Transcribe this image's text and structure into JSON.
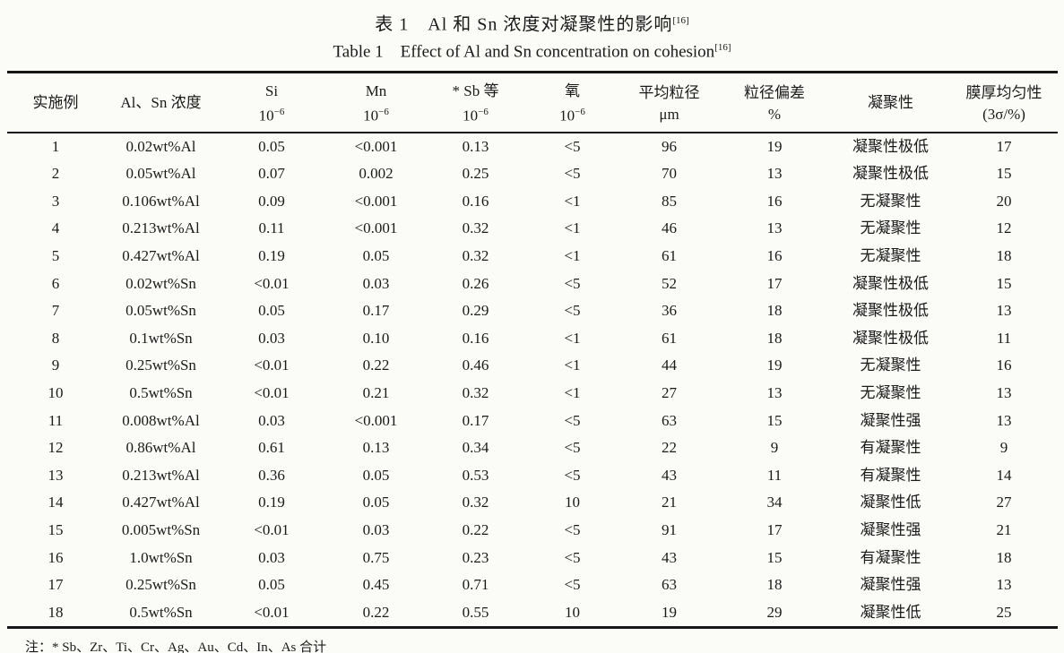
{
  "caption": {
    "zh": "表 1　Al 和 Sn 浓度对凝聚性的影响",
    "zh_ref": "[16]",
    "en": "Table 1　Effect of Al and Sn concentration on cohesion",
    "en_ref": "[16]"
  },
  "table": {
    "columns": [
      {
        "key": "example",
        "name": "实施例",
        "unit": "",
        "unit_sup": ""
      },
      {
        "key": "al-sn-concentration",
        "name": "Al、Sn 浓度",
        "unit": "",
        "unit_sup": ""
      },
      {
        "key": "si",
        "name": "Si",
        "unit": "10",
        "unit_sup": "−6"
      },
      {
        "key": "mn",
        "name": "Mn",
        "unit": "10",
        "unit_sup": "−6"
      },
      {
        "key": "sb-etc",
        "name": "* Sb 等",
        "unit": "10",
        "unit_sup": "−6"
      },
      {
        "key": "oxygen",
        "name": "氧",
        "unit": "10",
        "unit_sup": "−6"
      },
      {
        "key": "avg-particle-size",
        "name": "平均粒径",
        "unit": "μm",
        "unit_sup": ""
      },
      {
        "key": "particle-size-deviation",
        "name": "粒径偏差",
        "unit": "%",
        "unit_sup": ""
      },
      {
        "key": "cohesion",
        "name": "凝聚性",
        "unit": "",
        "unit_sup": ""
      },
      {
        "key": "film-thickness-uniformity",
        "name": "膜厚均匀性",
        "unit": "(3σ/%)",
        "unit_sup": ""
      }
    ],
    "rows": [
      [
        "1",
        "0.02wt%Al",
        "0.05",
        "<0.001",
        "0.13",
        "<5",
        "96",
        "19",
        "凝聚性极低",
        "17"
      ],
      [
        "2",
        "0.05wt%Al",
        "0.07",
        "0.002",
        "0.25",
        "<5",
        "70",
        "13",
        "凝聚性极低",
        "15"
      ],
      [
        "3",
        "0.106wt%Al",
        "0.09",
        "<0.001",
        "0.16",
        "<1",
        "85",
        "16",
        "无凝聚性",
        "20"
      ],
      [
        "4",
        "0.213wt%Al",
        "0.11",
        "<0.001",
        "0.32",
        "<1",
        "46",
        "13",
        "无凝聚性",
        "12"
      ],
      [
        "5",
        "0.427wt%Al",
        "0.19",
        "0.05",
        "0.32",
        "<1",
        "61",
        "16",
        "无凝聚性",
        "18"
      ],
      [
        "6",
        "0.02wt%Sn",
        "<0.01",
        "0.03",
        "0.26",
        "<5",
        "52",
        "17",
        "凝聚性极低",
        "15"
      ],
      [
        "7",
        "0.05wt%Sn",
        "0.05",
        "0.17",
        "0.29",
        "<5",
        "36",
        "18",
        "凝聚性极低",
        "13"
      ],
      [
        "8",
        "0.1wt%Sn",
        "0.03",
        "0.10",
        "0.16",
        "<1",
        "61",
        "18",
        "凝聚性极低",
        "11"
      ],
      [
        "9",
        "0.25wt%Sn",
        "<0.01",
        "0.22",
        "0.46",
        "<1",
        "44",
        "19",
        "无凝聚性",
        "16"
      ],
      [
        "10",
        "0.5wt%Sn",
        "<0.01",
        "0.21",
        "0.32",
        "<1",
        "27",
        "13",
        "无凝聚性",
        "13"
      ],
      [
        "11",
        "0.008wt%Al",
        "0.03",
        "<0.001",
        "0.17",
        "<5",
        "63",
        "15",
        "凝聚性强",
        "13"
      ],
      [
        "12",
        "0.86wt%Al",
        "0.61",
        "0.13",
        "0.34",
        "<5",
        "22",
        "9",
        "有凝聚性",
        "9"
      ],
      [
        "13",
        "0.213wt%Al",
        "0.36",
        "0.05",
        "0.53",
        "<5",
        "43",
        "11",
        "有凝聚性",
        "14"
      ],
      [
        "14",
        "0.427wt%Al",
        "0.19",
        "0.05",
        "0.32",
        "10",
        "21",
        "34",
        "凝聚性低",
        "27"
      ],
      [
        "15",
        "0.005wt%Sn",
        "<0.01",
        "0.03",
        "0.22",
        "<5",
        "91",
        "17",
        "凝聚性强",
        "21"
      ],
      [
        "16",
        "1.0wt%Sn",
        "0.03",
        "0.75",
        "0.23",
        "<5",
        "43",
        "15",
        "有凝聚性",
        "18"
      ],
      [
        "17",
        "0.25wt%Sn",
        "0.05",
        "0.45",
        "0.71",
        "<5",
        "63",
        "18",
        "凝聚性强",
        "13"
      ],
      [
        "18",
        "0.5wt%Sn",
        "<0.01",
        "0.22",
        "0.55",
        "10",
        "19",
        "29",
        "凝聚性低",
        "25"
      ]
    ]
  },
  "footnote": "注：* Sb、Zr、Ti、Cr、Ag、Au、Cd、In、As 合计",
  "colors": {
    "background": "#fbfbf8",
    "text": "#1a1a1a",
    "rule": "#161616"
  }
}
